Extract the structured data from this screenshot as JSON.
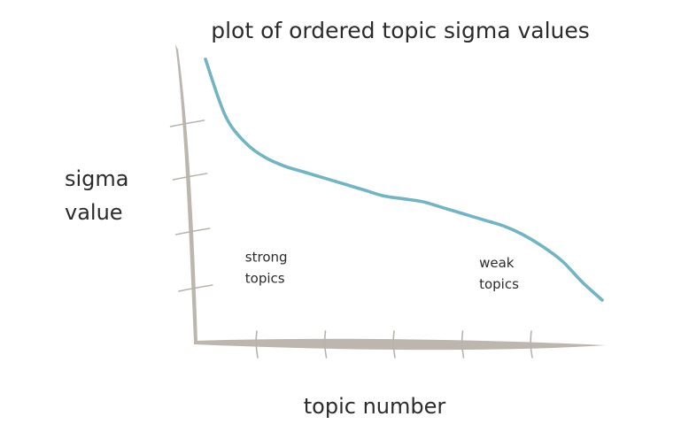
{
  "chart_data": {
    "type": "line",
    "title": "plot of ordered topic sigma values",
    "xlabel": "topic number",
    "ylabel_lines": [
      "sigma",
      "value"
    ],
    "xlim": [
      0,
      1
    ],
    "ylim": [
      0,
      1
    ],
    "grid": false,
    "legend": "none",
    "x_tick_count": 5,
    "y_tick_count": 4,
    "colors": {
      "curve": "#72b3c4",
      "axis": "#bdb6ae",
      "text": "#2b2b2b"
    },
    "series": [
      {
        "x": [
          0.0,
          0.05,
          0.1,
          0.15,
          0.2,
          0.25,
          0.3,
          0.35,
          0.4,
          0.45,
          0.5,
          0.55,
          0.6,
          0.65,
          0.7,
          0.75,
          0.8,
          0.85,
          0.9,
          0.95,
          1.0
        ],
        "values": [
          0.95,
          0.76,
          0.67,
          0.62,
          0.59,
          0.57,
          0.55,
          0.53,
          0.51,
          0.49,
          0.48,
          0.47,
          0.45,
          0.43,
          0.41,
          0.39,
          0.36,
          0.32,
          0.27,
          0.2,
          0.14
        ]
      }
    ],
    "annotations": [
      {
        "lines": [
          "strong",
          "topics"
        ],
        "x": 0.1,
        "y": 0.27
      },
      {
        "lines": [
          "weak",
          "topics"
        ],
        "x": 0.69,
        "y": 0.25
      }
    ]
  }
}
